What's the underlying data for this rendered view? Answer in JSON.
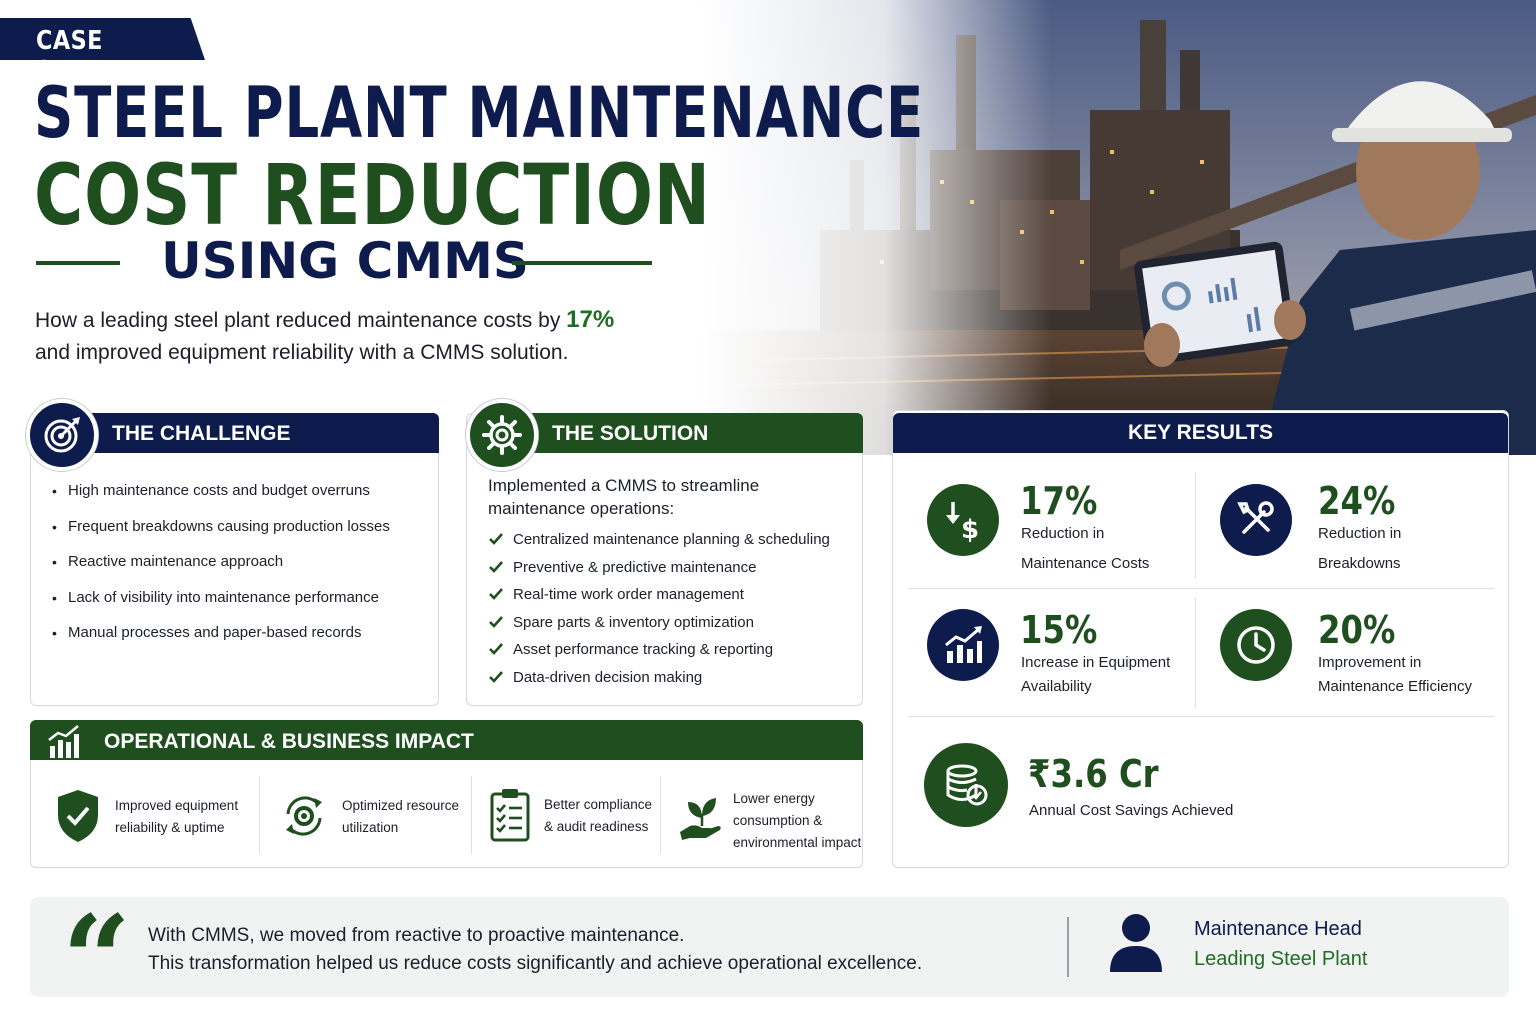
{
  "header": {
    "tag": "CASE STUDY",
    "title_line1": "STEEL PLANT MAINTENANCE",
    "title_line2": "COST REDUCTION",
    "title_line3": "USING CMMS",
    "subtitle_pre": "How a leading steel plant reduced maintenance costs by ",
    "subtitle_highlight": "17%",
    "subtitle_post": "and improved equipment reliability with a CMMS solution."
  },
  "colors": {
    "navy": "#0e1b4d",
    "green": "#1f4f1f",
    "accent_green": "#1f6d24"
  },
  "challenge": {
    "title": "THE CHALLENGE",
    "icon": "target-icon",
    "items": [
      "High maintenance costs and budget overruns",
      "Frequent breakdowns causing production losses",
      "Reactive maintenance approach",
      "Lack of visibility into maintenance performance",
      "Manual processes and paper-based records"
    ]
  },
  "solution": {
    "title": "THE SOLUTION",
    "icon": "gear-icon",
    "intro": "Implemented a CMMS to streamline maintenance operations:",
    "items": [
      "Centralized maintenance planning & scheduling",
      "Preventive & predictive maintenance",
      "Real-time work order management",
      "Spare parts & inventory optimization",
      "Asset performance tracking & reporting",
      "Data-driven decision making"
    ]
  },
  "key_results": {
    "title": "KEY RESULTS",
    "metrics": [
      {
        "value": "17%",
        "label_line1": "Reduction in",
        "label_line2": "Maintenance Costs",
        "icon": "cost-down-icon"
      },
      {
        "value": "24%",
        "label_line1": "Reduction in",
        "label_line2": "Breakdowns",
        "icon": "tools-icon"
      },
      {
        "value": "15%",
        "label_line1": "Increase in Equipment",
        "label_line2": "Availability",
        "icon": "growth-chart-icon"
      },
      {
        "value": "20%",
        "label_line1": "Improvement in",
        "label_line2": "Maintenance Efficiency",
        "icon": "clock-icon"
      }
    ],
    "savings": {
      "value": "₹3.6 Cr",
      "label": "Annual Cost Savings Achieved",
      "icon": "coins-icon"
    }
  },
  "impact": {
    "title": "OPERATIONAL & BUSINESS IMPACT",
    "icon": "bar-growth-icon",
    "items": [
      {
        "line1": "Improved equipment",
        "line2": "reliability & uptime",
        "line3": "",
        "icon": "shield-check-icon"
      },
      {
        "line1": "Optimized resource",
        "line2": "utilization",
        "line3": "",
        "icon": "cycle-gear-icon"
      },
      {
        "line1": "Better compliance",
        "line2": "& audit readiness",
        "line3": "",
        "icon": "clipboard-icon"
      },
      {
        "line1": "Lower energy",
        "line2": "consumption &",
        "line3": "environmental impact",
        "icon": "leaf-hand-icon"
      }
    ]
  },
  "testimonial": {
    "line1": "With CMMS, we moved from reactive to proactive maintenance.",
    "line2": "This transformation helped us reduce costs significantly and achieve operational excellence.",
    "role": "Maintenance Head",
    "organization": "Leading Steel Plant",
    "icon": "person-icon"
  }
}
